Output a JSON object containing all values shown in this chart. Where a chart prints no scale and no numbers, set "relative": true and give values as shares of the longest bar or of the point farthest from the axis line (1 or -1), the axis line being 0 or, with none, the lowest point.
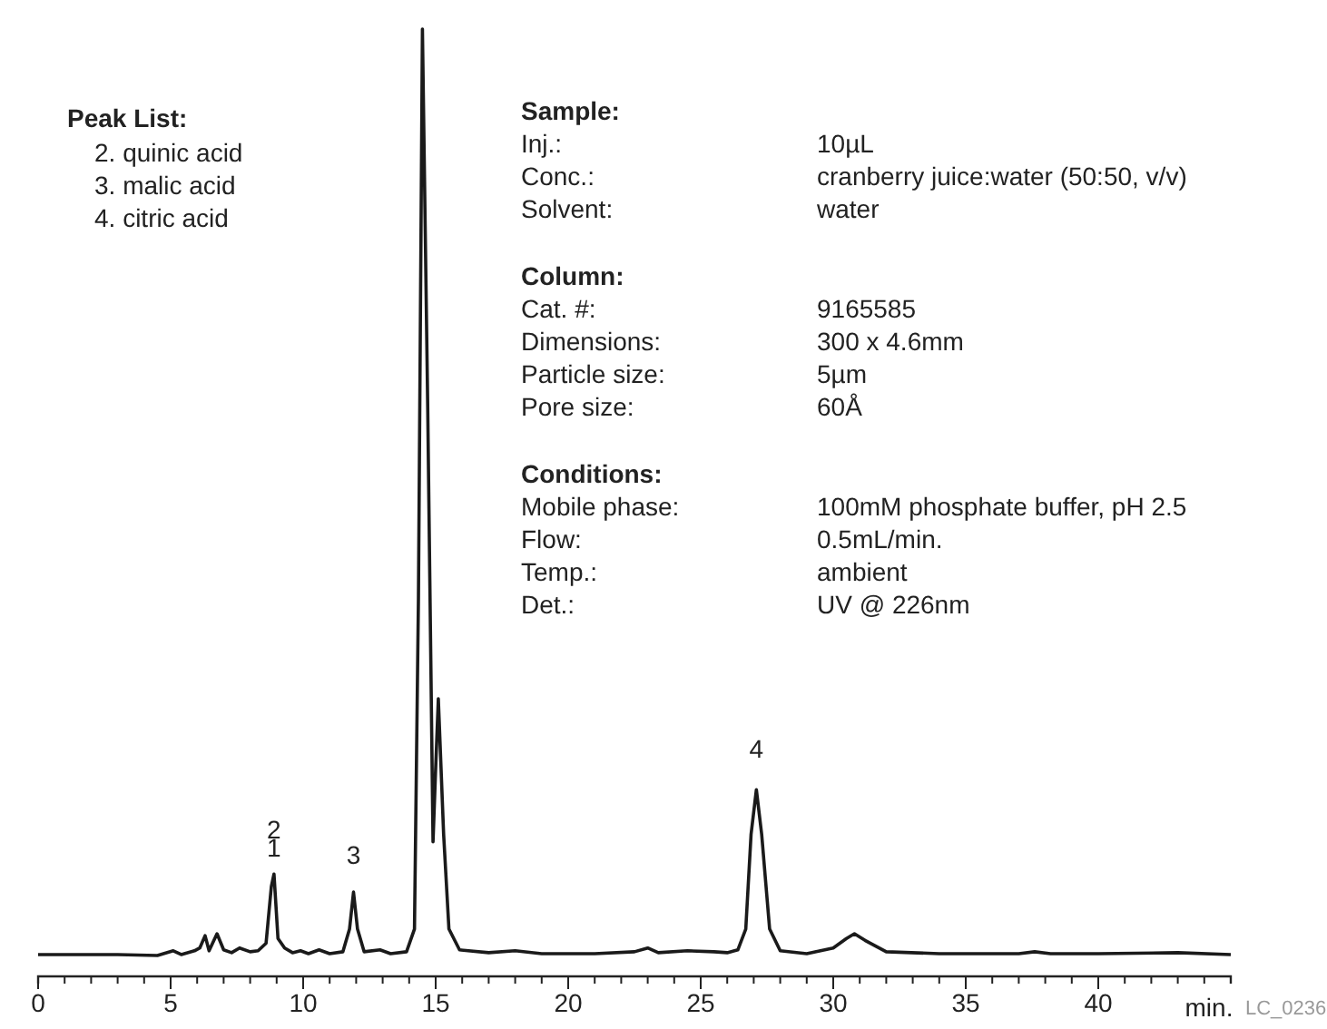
{
  "chart_data": {
    "type": "line",
    "relative": true,
    "xlabel": "min.",
    "xlim": [
      0,
      45
    ],
    "xticks": [
      0,
      {
        "value": 1,
        "label": null
      },
      {
        "value": 2,
        "label": null
      },
      {
        "value": 3,
        "label": null
      },
      {
        "value": 4,
        "label": null
      },
      5,
      {
        "value": 6,
        "label": null
      },
      {
        "value": 7,
        "label": null
      },
      {
        "value": 8,
        "label": null
      },
      {
        "value": 9,
        "label": null
      },
      10,
      {
        "value": 11,
        "label": null
      },
      {
        "value": 12,
        "label": null
      },
      {
        "value": 13,
        "label": null
      },
      {
        "value": 14,
        "label": null
      },
      15,
      {
        "value": 16,
        "label": null
      },
      {
        "value": 17,
        "label": null
      },
      {
        "value": 18,
        "label": null
      },
      {
        "value": 19,
        "label": null
      },
      20,
      {
        "value": 21,
        "label": null
      },
      {
        "value": 22,
        "label": null
      },
      {
        "value": 23,
        "label": null
      },
      {
        "value": 24,
        "label": null
      },
      25,
      {
        "value": 26,
        "label": null
      },
      {
        "value": 27,
        "label": null
      },
      {
        "value": 28,
        "label": null
      },
      {
        "value": 29,
        "label": null
      },
      30,
      {
        "value": 31,
        "label": null
      },
      {
        "value": 32,
        "label": null
      },
      {
        "value": 33,
        "label": null
      },
      {
        "value": 34,
        "label": null
      },
      35,
      {
        "value": 36,
        "label": null
      },
      {
        "value": 37,
        "label": null
      },
      {
        "value": 38,
        "label": null
      },
      {
        "value": 39,
        "label": null
      },
      40,
      {
        "value": 41,
        "label": null
      },
      {
        "value": 42,
        "label": null
      },
      {
        "value": 43,
        "label": null
      },
      {
        "value": 44,
        "label": null
      },
      {
        "value": 45,
        "label": null
      }
    ],
    "grid": false,
    "marker": "none",
    "line_style": "solid",
    "series": [
      {
        "color": "#1a1a1a",
        "x": [
          0,
          3,
          4.5,
          5.1,
          5.4,
          5.9,
          6.1,
          6.3,
          6.45,
          6.75,
          7.0,
          7.3,
          7.6,
          8.0,
          8.3,
          8.6,
          8.8,
          8.9,
          9.05,
          9.3,
          9.6,
          9.9,
          10.2,
          10.6,
          11.0,
          11.5,
          11.75,
          11.9,
          12.05,
          12.3,
          12.9,
          13.3,
          13.9,
          14.2,
          14.35,
          14.5,
          14.7,
          14.9,
          15.0,
          15.1,
          15.3,
          15.5,
          15.9,
          17,
          18,
          19,
          21,
          22.5,
          23.0,
          23.4,
          24.5,
          25.5,
          26.0,
          26.4,
          26.7,
          26.9,
          27.1,
          27.3,
          27.6,
          28.0,
          29,
          30,
          30.5,
          30.8,
          31.2,
          32,
          34,
          37,
          37.6,
          38.2,
          40,
          43,
          45
        ],
        "values": [
          0.023,
          0.023,
          0.022,
          0.027,
          0.023,
          0.027,
          0.03,
          0.043,
          0.027,
          0.045,
          0.028,
          0.025,
          0.03,
          0.026,
          0.027,
          0.035,
          0.095,
          0.108,
          0.04,
          0.03,
          0.025,
          0.027,
          0.024,
          0.028,
          0.024,
          0.026,
          0.05,
          0.089,
          0.05,
          0.026,
          0.028,
          0.024,
          0.026,
          0.05,
          0.4,
          1.0,
          0.6,
          0.142,
          0.22,
          0.293,
          0.15,
          0.05,
          0.028,
          0.025,
          0.027,
          0.024,
          0.024,
          0.026,
          0.03,
          0.025,
          0.027,
          0.026,
          0.025,
          0.028,
          0.05,
          0.15,
          0.197,
          0.15,
          0.05,
          0.027,
          0.024,
          0.03,
          0.04,
          0.045,
          0.038,
          0.026,
          0.024,
          0.024,
          0.026,
          0.024,
          0.024,
          0.025,
          0.023
        ]
      }
    ],
    "annotations": [
      "Peak List:",
      "2. quinic acid",
      "3. malic acid",
      "4. citric acid",
      "Sample:",
      "Inj.:",
      "10µL",
      "Conc.:",
      "cranberry juice:water (50:50, v/v)",
      "Solvent:",
      "water",
      "Column:",
      "Cat. #:",
      "9165585",
      "Dimensions:",
      "300 x 4.6mm",
      "Particle size:",
      "5µm",
      "Pore size:",
      "60Å",
      "Conditions:",
      "Mobile phase:",
      "100mM phosphate buffer, pH 2.5",
      "Flow:",
      "0.5mL/min.",
      "Temp.:",
      "ambient",
      "Det.:",
      "UV @ 226nm",
      "LC_0236",
      "2",
      "1",
      "3",
      "4"
    ]
  }
}
